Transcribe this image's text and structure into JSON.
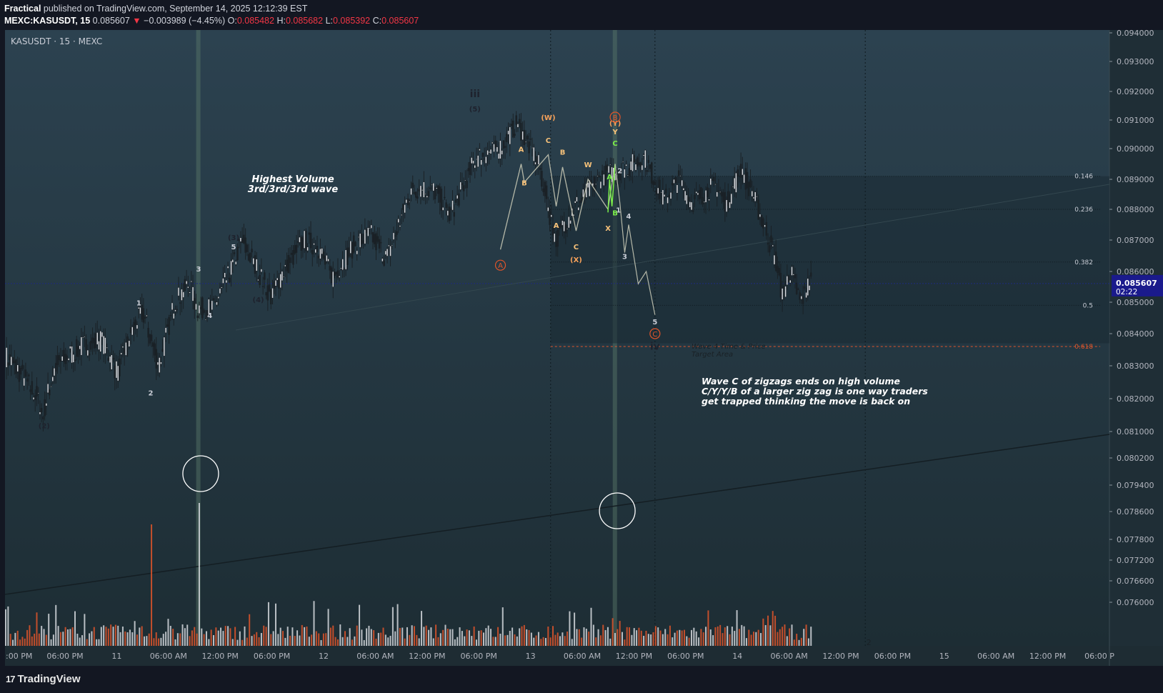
{
  "header": {
    "author": "Fractical",
    "published": "published on TradingView.com, September 14, 2025 12:12:39 EST",
    "symbol": "MEXC:KASUSDT, 15",
    "last": "0.085607",
    "change": "−0.003989 (−4.45%)",
    "o_label": "O:",
    "o_value": "0.085482",
    "h_label": "H:",
    "h_value": "0.085682",
    "l_label": "L:",
    "l_value": "0.085392",
    "c_label": "C:",
    "c_value": "0.085607"
  },
  "chart_data": {
    "type": "candlestick",
    "title": "KASUSDT · 15 · MEXC",
    "ylim": [
      0.0755,
      0.0943
    ],
    "y_ticks": [
      "0.094000",
      "0.093000",
      "0.092000",
      "0.091000",
      "0.090000",
      "0.089000",
      "0.088000",
      "0.087000",
      "0.086000",
      "0.085000",
      "0.084000",
      "0.083000",
      "0.082000",
      "0.081000",
      "0.080200",
      "0.079400",
      "0.078600",
      "0.077800",
      "0.077200",
      "0.076600",
      "0.076000"
    ],
    "x_ticks": [
      ":00 PM",
      "06:00 PM",
      "11",
      "06:00 AM",
      "12:00 PM",
      "06:00 PM",
      "12",
      "06:00 AM",
      "12:00 PM",
      "06:00 PM",
      "13",
      "06:00 AM",
      "12:00 PM",
      "06:00 PM",
      "14",
      "06:00 AM",
      "12:00 PM",
      "06:00 PM",
      "15",
      "06:00 AM",
      "12:00 PM",
      "06:00 P"
    ],
    "current_price": "0.085607",
    "countdown": "02:22",
    "price_path": [
      [
        0.0833,
        0
      ],
      [
        0.0828,
        18
      ],
      [
        0.082,
        40
      ],
      [
        0.0815,
        46
      ],
      [
        0.083,
        62
      ],
      [
        0.0836,
        95
      ],
      [
        0.0838,
        120
      ],
      [
        0.0828,
        140
      ],
      [
        0.0842,
        160
      ],
      [
        0.0847,
        172
      ],
      [
        0.083,
        192
      ],
      [
        0.085,
        212
      ],
      [
        0.0856,
        230
      ],
      [
        0.0848,
        240
      ],
      [
        0.0848,
        260
      ],
      [
        0.086,
        282
      ],
      [
        0.087,
        296
      ],
      [
        0.0862,
        313
      ],
      [
        0.0852,
        333
      ],
      [
        0.086,
        348
      ],
      [
        0.087,
        374
      ],
      [
        0.0868,
        392
      ],
      [
        0.0858,
        410
      ],
      [
        0.0868,
        436
      ],
      [
        0.0872,
        458
      ],
      [
        0.0864,
        478
      ],
      [
        0.0886,
        508
      ],
      [
        0.0887,
        520
      ],
      [
        0.0886,
        540
      ],
      [
        0.0878,
        558
      ],
      [
        0.0897,
        590
      ],
      [
        0.09,
        620
      ],
      [
        0.0909,
        642
      ],
      [
        0.0894,
        670
      ],
      [
        0.087,
        690
      ],
      [
        0.0881,
        715
      ],
      [
        0.0891,
        748
      ],
      [
        0.0894,
        780
      ],
      [
        0.0897,
        802
      ],
      [
        0.0883,
        826
      ],
      [
        0.089,
        845
      ],
      [
        0.0882,
        860
      ],
      [
        0.0888,
        890
      ],
      [
        0.0882,
        905
      ],
      [
        0.0888,
        915
      ],
      [
        0.0894,
        922
      ],
      [
        0.0886,
        936
      ],
      [
        0.0875,
        952
      ],
      [
        0.0862,
        968
      ],
      [
        0.0852,
        975
      ],
      [
        0.086,
        985
      ],
      [
        0.085,
        998
      ],
      [
        0.0857,
        1010
      ]
    ],
    "fib_levels": [
      {
        "label": "0.146",
        "value": 0.0891
      },
      {
        "label": "0.236",
        "value": 0.088
      },
      {
        "label": "0.382",
        "value": 0.0863
      },
      {
        "label": "0.5",
        "value": 0.0849
      },
      {
        "label": "0.618",
        "value": 0.0836
      }
    ],
    "wave_labels": [
      {
        "text": "(2)",
        "price": 0.0811,
        "i": 42,
        "color": "#1e222d"
      },
      {
        "text": "1",
        "price": 0.0849,
        "i": 168,
        "color": "#c9cdd6"
      },
      {
        "text": "2",
        "price": 0.0821,
        "i": 183,
        "color": "#c9cdd6"
      },
      {
        "text": "3",
        "price": 0.086,
        "i": 243,
        "color": "#c9cdd6"
      },
      {
        "text": "4",
        "price": 0.0845,
        "i": 257,
        "color": "#c9cdd6"
      },
      {
        "text": "5",
        "price": 0.0867,
        "i": 287,
        "color": "#c9cdd6"
      },
      {
        "text": "(3)",
        "price": 0.087,
        "i": 287,
        "color": "#1e222d"
      },
      {
        "text": "(4)",
        "price": 0.085,
        "i": 318,
        "color": "#1e222d"
      },
      {
        "text": "iii",
        "price": 0.0918,
        "i": 590,
        "color": "#1e222d"
      },
      {
        "text": "(5)",
        "price": 0.0913,
        "i": 590,
        "color": "#1e222d"
      },
      {
        "text": "(W)",
        "price": 0.091,
        "i": 682,
        "color": "#f5a15a"
      },
      {
        "text": "C",
        "price": 0.0902,
        "i": 682,
        "color": "#f7c27a"
      },
      {
        "text": "A",
        "price": 0.0899,
        "i": 648,
        "color": "#f7c27a"
      },
      {
        "text": "B",
        "price": 0.0888,
        "i": 652,
        "color": "#f7c27a"
      },
      {
        "text": "B",
        "price": 0.0898,
        "i": 700,
        "color": "#f7c27a"
      },
      {
        "text": "A",
        "price": 0.0874,
        "i": 692,
        "color": "#f7c27a"
      },
      {
        "text": "C",
        "price": 0.0867,
        "i": 717,
        "color": "#f7c27a"
      },
      {
        "text": "(X)",
        "price": 0.0863,
        "i": 717,
        "color": "#f5a15a"
      },
      {
        "text": "W",
        "price": 0.0894,
        "i": 732,
        "color": "#f7c27a"
      },
      {
        "text": "X",
        "price": 0.0873,
        "i": 757,
        "color": "#f7c27a"
      },
      {
        "text": "(Y)",
        "price": 0.0908,
        "i": 766,
        "color": "#f5a15a"
      },
      {
        "text": "Y",
        "price": 0.0905,
        "i": 766,
        "color": "#f7c27a"
      },
      {
        "text": "C",
        "price": 0.0901,
        "i": 766,
        "color": "#7cf04a"
      },
      {
        "text": "A",
        "price": 0.089,
        "i": 759,
        "color": "#7cf04a"
      },
      {
        "text": "B",
        "price": 0.0878,
        "i": 766,
        "color": "#7cf04a"
      },
      {
        "text": "1",
        "price": 0.0879,
        "i": 770,
        "color": "#c9cdd6"
      },
      {
        "text": "2",
        "price": 0.0892,
        "i": 772,
        "color": "#c9cdd6"
      },
      {
        "text": "3",
        "price": 0.0864,
        "i": 778,
        "color": "#c9cdd6"
      },
      {
        "text": "4",
        "price": 0.0877,
        "i": 783,
        "color": "#c9cdd6"
      },
      {
        "text": "5",
        "price": 0.0843,
        "i": 816,
        "color": "#c9cdd6"
      },
      {
        "text": "iv",
        "price": 0.0835,
        "i": 816,
        "color": "#1e222d"
      }
    ],
    "circle_labels": [
      {
        "text": "A",
        "price": 0.0862,
        "i": 622
      },
      {
        "text": "B",
        "price": 0.0911,
        "i": 766
      },
      {
        "text": "C",
        "price": 0.084,
        "i": 816
      }
    ],
    "annotations": {
      "highest_volume": "Highest Volume",
      "wave_333": "3rd/3rd/3rd wave",
      "target1": "Wave 4 Time & Price",
      "target2": "Target Area",
      "note1": "Wave C of zigzags ends on high volume",
      "note2": "C/Y/Y/B of a larger zig zag is one way traders",
      "note3": "get trapped thinking the move is back on"
    },
    "volume_spikes": [
      {
        "i": 243,
        "label": "highest volume"
      },
      {
        "i": 766,
        "label": "high volume"
      }
    ],
    "bottom_markers": [
      "2"
    ]
  },
  "footer": {
    "brand": "TradingView",
    "logo_glyph": "17"
  },
  "colors": {
    "up": "#c9cdd6",
    "down": "#e0552a",
    "bg_top": "#2a3f4b",
    "bg_bottom": "#1e2f36",
    "price_tag": "#1a1a8c"
  }
}
